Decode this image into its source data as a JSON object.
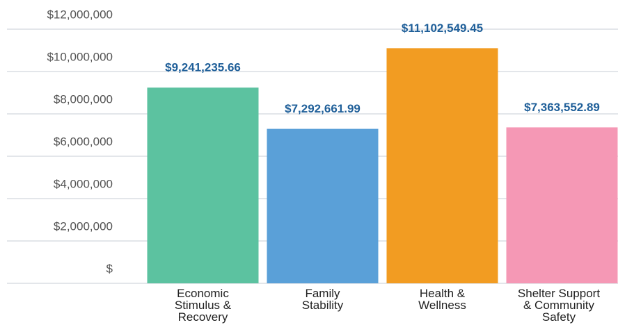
{
  "chart_data": {
    "type": "bar",
    "categories": [
      "Economic\nStimulus &\nRecovery",
      "Family\nStability",
      "Health &\nWellness",
      "Shelter Support\n& Community\nSafety"
    ],
    "values": [
      9241235.66,
      7292661.99,
      11102549.45,
      7363552.89
    ],
    "value_labels": [
      "$9,241,235.66",
      "$7,292,661.99",
      "$11,102,549.45",
      "$7,363,552.89"
    ],
    "colors": [
      "#5cc2a0",
      "#5aa0d8",
      "#f29c22",
      "#f598b5"
    ],
    "ylim": [
      0,
      12000000
    ],
    "yticks": [
      {
        "value": 0,
        "label": "$"
      },
      {
        "value": 2000000,
        "label": "$2,000,000"
      },
      {
        "value": 4000000,
        "label": "$4,000,000"
      },
      {
        "value": 6000000,
        "label": "$6,000,000"
      },
      {
        "value": 8000000,
        "label": "$8,000,000"
      },
      {
        "value": 10000000,
        "label": "$10,000,000"
      },
      {
        "value": 12000000,
        "label": "$12,000,000"
      }
    ],
    "grid": true
  }
}
